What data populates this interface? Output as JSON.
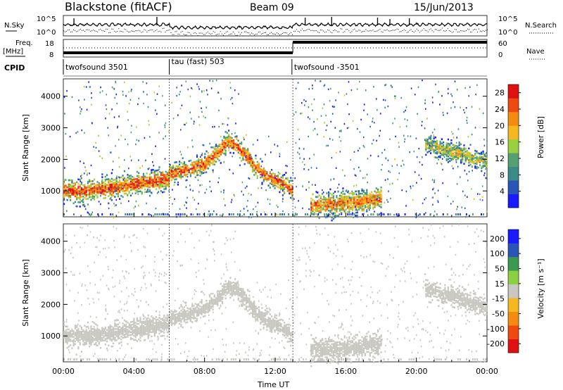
{
  "header": {
    "radar": "Blackstone (fitACF)",
    "beam": "Beam 09",
    "date": "15/Jun/2013"
  },
  "strip": {
    "nsky_label": "N.Sky",
    "nsky_ticks": [
      "10^5",
      "10^0"
    ],
    "nsearch_label": "N.Search",
    "freq_label": "Freq.",
    "freq_unit": "[MHz]",
    "freq_ticks": [
      "18",
      "8"
    ],
    "nave_label": "Nave",
    "nave_ticks": [
      "60",
      "0"
    ],
    "cpid_label": "CPID",
    "cpid_segments": [
      {
        "label": "twofsound 3501",
        "start_h": 0,
        "end_h": 6
      },
      {
        "label": "tau (fast) 503",
        "start_h": 6,
        "end_h": 12.95
      },
      {
        "label": "twofsound -3501",
        "start_h": 12.95,
        "end_h": 24
      }
    ],
    "freq_steps": [
      {
        "start_h": 0,
        "end_h": 13,
        "freq_mhz": 10.4
      },
      {
        "start_h": 13,
        "end_h": 24,
        "freq_mhz": 16.4
      }
    ]
  },
  "chart_data": [
    {
      "type": "heatmap",
      "name": "power",
      "ylabel": "Slant Range [km]",
      "yticks": [
        "1000",
        "2000",
        "3000",
        "4000"
      ],
      "ylim": [
        180,
        4550
      ],
      "xlim": [
        0,
        24
      ],
      "colorbar_label": "Power [dB]",
      "colorbar_ticks": [
        "4",
        "8",
        "12",
        "16",
        "20",
        "24",
        "28"
      ],
      "colorbar_range": [
        0,
        30
      ],
      "colors": [
        "#1a1aff",
        "#2a55b8",
        "#3a8a88",
        "#55a070",
        "#9ad040",
        "#f5b820",
        "#f58a10",
        "#ee4a10",
        "#e01010"
      ],
      "bands": [
        {
          "x": [
            0,
            1,
            2,
            3,
            4,
            5,
            6
          ],
          "center": [
            1050,
            1010,
            1080,
            1150,
            1250,
            1320,
            1420
          ],
          "width": 300,
          "level": 26
        },
        {
          "x": [
            6,
            7,
            8,
            8.8,
            9.3,
            9.8,
            10.5,
            11,
            11.5,
            12,
            12.6,
            13
          ],
          "center": [
            1600,
            1700,
            1900,
            2280,
            2600,
            2450,
            2050,
            1700,
            1500,
            1380,
            1200,
            1020
          ],
          "width": 260,
          "level": 25
        },
        {
          "x": [
            14,
            15,
            16,
            17,
            18
          ],
          "center": [
            580,
            600,
            640,
            700,
            800
          ],
          "width": 320,
          "level": 23
        },
        {
          "x": [
            20.5,
            21.5,
            22.5,
            23.5,
            24
          ],
          "center": [
            2500,
            2350,
            2200,
            2000,
            1950
          ],
          "width": 260,
          "level": 16
        }
      ]
    },
    {
      "type": "heatmap",
      "name": "velocity",
      "ylabel": "Slant Range [km]",
      "xlabel": "Time UT",
      "yticks": [
        "1000",
        "2000",
        "3000",
        "4000"
      ],
      "xticks": [
        "00:00",
        "04:00",
        "08:00",
        "12:00",
        "16:00",
        "20:00",
        "00:00"
      ],
      "ylim": [
        180,
        4550
      ],
      "xlim": [
        0,
        24
      ],
      "colorbar_label": "Velocity [m s⁻¹]",
      "colorbar_ticks": [
        "200",
        "100",
        "50",
        "15",
        "-15",
        "-50",
        "-100",
        "-200"
      ],
      "colorbar_range": [
        -250,
        250
      ],
      "colors": [
        "#e01010",
        "#ee4a10",
        "#f58a10",
        "#f5b820",
        "#c8c8c0",
        "#8ad040",
        "#3a9a50",
        "#2a55b8",
        "#1a1aff"
      ],
      "bands": [
        {
          "x": [
            0,
            1,
            2,
            3,
            4,
            5,
            6
          ],
          "center": [
            1050,
            1010,
            1080,
            1150,
            1250,
            1320,
            1420
          ],
          "width": 300,
          "level": 0
        },
        {
          "x": [
            6,
            7,
            8,
            8.8,
            9.3,
            9.8,
            10.5,
            11,
            11.5,
            12,
            12.6,
            13
          ],
          "center": [
            1600,
            1700,
            1900,
            2280,
            2600,
            2450,
            2050,
            1700,
            1500,
            1380,
            1200,
            1020
          ],
          "width": 260,
          "level": 0
        },
        {
          "x": [
            14,
            15,
            16,
            17,
            18
          ],
          "center": [
            580,
            600,
            640,
            700,
            800
          ],
          "width": 320,
          "level": 0
        },
        {
          "x": [
            20.5,
            21.5,
            22.5,
            23.5,
            24
          ],
          "center": [
            2500,
            2350,
            2200,
            2000,
            1950
          ],
          "width": 260,
          "level": 0
        }
      ]
    }
  ]
}
